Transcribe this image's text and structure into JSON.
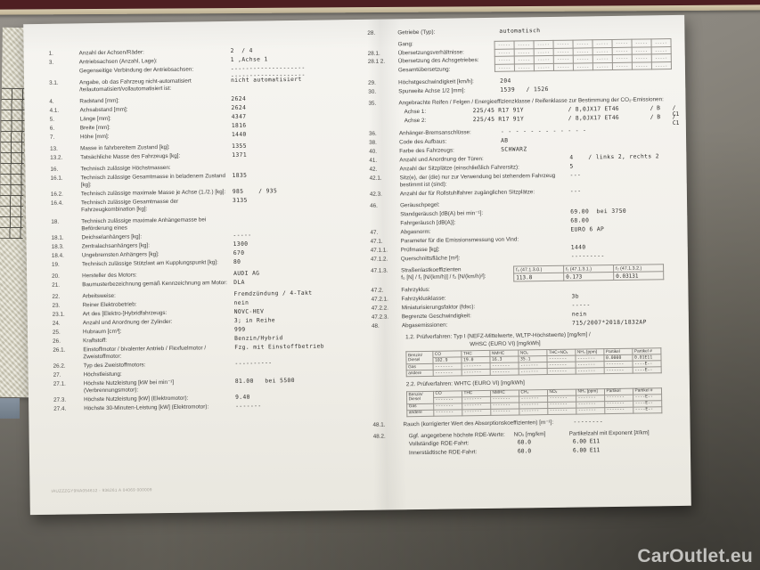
{
  "watermark": "CarOutlet.eu",
  "footer_code": "IAUZZZGY9NA054612 - 936261 A 04069      000009",
  "left_groups": [
    [
      {
        "n": "1.",
        "l": "Anzahl der Achsen/Räder:",
        "v": "2  / 4"
      },
      {
        "n": "3.",
        "l": "Antriebsachsen (Anzahl, Lage):",
        "v": "1 ,Achse 1"
      },
      {
        "n": "",
        "l": "Gegenseitige Verbindung der Antriebsachsen:",
        "v": "--------------------\n--------------------"
      }
    ],
    [
      {
        "n": "3.1.",
        "l": "Angabe, ob das Fahrzeug nicht-automatisiert /teilautomatisiert/vollautomatisiert ist:",
        "v": "nicht automatisiert"
      }
    ],
    [
      {
        "n": "4.",
        "l": "Radstand [mm]:",
        "v": "2624"
      },
      {
        "n": "4.1.",
        "l": "Achsabstand [mm]:",
        "v": "2624"
      },
      {
        "n": "5.",
        "l": "Länge [mm]:",
        "v": "4347"
      },
      {
        "n": "6.",
        "l": "Breite [mm]:",
        "v": "1816"
      },
      {
        "n": "7.",
        "l": "Höhe [mm]:",
        "v": "1440"
      }
    ],
    [
      {
        "n": "13.",
        "l": "Masse in fahrbereitem Zustand [kg]:",
        "v": "1355"
      },
      {
        "n": "13.2.",
        "l": "Tatsächliche Masse des Fahrzeugs [kg]:",
        "v": "1371"
      }
    ],
    [
      {
        "n": "16.",
        "l": "Technisch zulässige Höchstmassen:",
        "v": ""
      },
      {
        "n": "16.1.",
        "l": "Technisch zulässige Gesamtmasse in beladenem Zustand [kg]:",
        "v": "1835"
      },
      {
        "n": "16.2.",
        "l": "Technisch zulässige maximale Masse je Achse (1./2.) [kg]:",
        "v": "985    / 935"
      },
      {
        "n": "16.4.",
        "l": "Technisch zulässige Gesamtmasse der Fahrzeugkombination [kg]:",
        "v": "3135"
      }
    ],
    [
      {
        "n": "18.",
        "l": "Technisch zulässige maximale Anhängemasse bei Beförderung eines",
        "v": ""
      },
      {
        "n": "18.1.",
        "l": "Deichselanhängers [kg]:",
        "v": "-----"
      },
      {
        "n": "18.3.",
        "l": "Zentralachsanhängers [kg]:",
        "v": "1300"
      },
      {
        "n": "18.4.",
        "l": "Ungebremsten Anhängers [kg]:",
        "v": "670"
      },
      {
        "n": "19.",
        "l": "Technisch zulässige Stützlast am Kupplungspunkt [kg]:",
        "v": "80"
      }
    ],
    [
      {
        "n": "20.",
        "l": "Hersteller des Motors:",
        "v": "AUDI AG"
      },
      {
        "n": "21.",
        "l": "Baumusterbezeichnung gemäß Kennzeichnung am Motor:",
        "v": "DLA"
      }
    ],
    [
      {
        "n": "22.",
        "l": "Arbeitsweise:",
        "v": "Fremdzündung / 4-Takt"
      },
      {
        "n": "23.",
        "l": "Reiner Elektrobetrieb:",
        "v": "nein"
      },
      {
        "n": "23.1.",
        "l": "Art des [Elektro-]Hybridfahrzeugs:",
        "v": "NOVC-HEV"
      },
      {
        "n": "24.",
        "l": "Anzahl und Anordnung der Zylinder:",
        "v": "3; in Reihe"
      },
      {
        "n": "25.",
        "l": "Hubraum [cm³]:",
        "v": "999"
      },
      {
        "n": "26.",
        "l": "Kraftstoff:",
        "v": "Benzin/Hybrid"
      },
      {
        "n": "26.1.",
        "l": "Einstoffmotor / bivalenter Antrieb / Flexfuelmotor / Zweistoffmotor:",
        "v": "Fzg. mit Einstoffbetrieb"
      },
      {
        "n": "26.2.",
        "l": "Typ des Zweistoffmotors:",
        "v": "----------"
      },
      {
        "n": "27.",
        "l": "Höchstleistung:",
        "v": ""
      },
      {
        "n": "27.1.",
        "l": "Höchste Nutzleistung [kW bei min⁻¹] (Verbrennungsmotor):",
        "v": "81.00   bei 5500"
      },
      {
        "n": "27.3.",
        "l": "Höchste Nutzleistung [kW] (Elektromotor):",
        "v": "9.40"
      },
      {
        "n": "27.4.",
        "l": "Höchste 30-Minuten-Leistung [kW] (Elektromotor):",
        "v": "-------"
      }
    ]
  ],
  "right_blocks": [
    {
      "type": "rows",
      "rows": [
        {
          "n": "28.",
          "l": "Getriebe (Typ):",
          "v": "automatisch",
          "p": "a"
        }
      ]
    },
    {
      "type": "gear",
      "rows": [
        {
          "n": "",
          "l": "Gang:"
        },
        {
          "n": "28.1.",
          "l": "Übersetzungsverhältnisse:"
        },
        {
          "n": "28.1 2.",
          "l": "Übersetzung des Achsgetriebes:"
        },
        {
          "n": "",
          "l": "Gesamtübersetzung:"
        }
      ],
      "cols": 9,
      "cell": "-----"
    },
    {
      "type": "rows",
      "rows": [
        {
          "n": "29.",
          "l": "Höchstgeschwindigkeit [km/h]:",
          "v": "204",
          "p": "a"
        },
        {
          "n": "30.",
          "l": "Spurweite Achse 1/2 [mm]:",
          "v": "1539   / 1526",
          "p": "a"
        }
      ]
    },
    {
      "type": "tires",
      "n": "35.",
      "l": "Angebrachte Reifen / Felgen / Energieeffizienzklasse / Reifenklasse zur Bestimmung der CO₂-Emissionen:",
      "axles": [
        {
          "l": "Achse 1:",
          "tire": "225/45 R17 91Y",
          "rim": "/ 8,0JX17 ET46",
          "eff": "/ B",
          "cls": "/ C1"
        },
        {
          "l": "Achse 2:",
          "tire": "225/45 R17 91Y",
          "rim": "/ 8,0JX17 ET46",
          "eff": "/ B",
          "cls": "/ C1"
        }
      ]
    },
    {
      "type": "rows",
      "rows": [
        {
          "n": "36.",
          "l": "Anhänger-Bremsanschlüsse:",
          "v": "- - - - - - - - - - - -",
          "p": "a"
        },
        {
          "n": "38.",
          "l": "Code des Aufbaus:",
          "v": "AB",
          "p": "a"
        },
        {
          "n": "40.",
          "l": "Farbe des Fahrzeugs:",
          "v": "SCHWARZ",
          "p": "a"
        },
        {
          "n": "41.",
          "l": "Anzahl und Anordnung der Türen:",
          "v": "4    / links 2, rechts 2",
          "p": "b"
        },
        {
          "n": "42.",
          "l": "Anzahl der Sitzplätze (einschließlich Fahrersitz):",
          "v": "5",
          "p": "b"
        },
        {
          "n": "42.1.",
          "l": "Sitz(e), der (die) nur zur Verwendung bei stehendem Fahrzeug bestimmt ist (sind):",
          "v": "---",
          "p": "b"
        },
        {
          "n": "42.3.",
          "l": "Anzahl der für Rollstuhlfahrer zugänglichen Sitzplätze:",
          "v": "---",
          "p": "b"
        }
      ]
    },
    {
      "type": "rows",
      "rows": [
        {
          "n": "46.",
          "l": "Geräuschpegel:",
          "v": ""
        },
        {
          "n": "",
          "l": "Standgeräusch [dB(A) bei min⁻¹]:",
          "v": "69.00  bei 3750",
          "p": "b"
        },
        {
          "n": "",
          "l": "Fahrgeräusch [dB(A)]:",
          "v": "68.00",
          "p": "b"
        },
        {
          "n": "47.",
          "l": "Abgasnorm:",
          "v": "EURO 6 AP",
          "p": "b"
        },
        {
          "n": "47.1.",
          "l": "Parameter für die Emissionsmessung von Vind:",
          "v": ""
        },
        {
          "n": "47.1.1.",
          "l": "Prüfmasse [kg]:",
          "v": "1440",
          "p": "b"
        },
        {
          "n": "47.1.2.",
          "l": "Querschnittsfläche [m²]:",
          "v": "---------",
          "p": "b"
        }
      ]
    },
    {
      "type": "road",
      "n": "47.1.3.",
      "l": "Straßenlastkoeffizienten\nf₀ [N] / f₁ [N/(km/h)] / f₂ [N/(km/h)²]:",
      "headers": [
        "f₀ (47.1.3.0.)",
        "f₁ (47.1.3.1.)",
        "f₂ (47.1.3.2.)"
      ],
      "values": [
        "113.8",
        "0.173",
        "0.03131"
      ]
    },
    {
      "type": "rows",
      "rows": [
        {
          "n": "47.2.",
          "l": "Fahrzyklus:",
          "v": ""
        },
        {
          "n": "47.2.1.",
          "l": "Fahrzyklusklasse:",
          "v": "3b",
          "p": "b"
        },
        {
          "n": "47.2.2.",
          "l": "Miniaturisierungsfaktor (fdsc):",
          "v": "-----",
          "p": "b"
        },
        {
          "n": "47.2.3.",
          "l": "Begrenzte Geschwindigkeit:",
          "v": "nein",
          "p": "b"
        },
        {
          "n": "48.",
          "l": "Abgasemissionen:",
          "v": "715/2007*2018/1832AP",
          "p": "b"
        }
      ]
    },
    {
      "type": "caption",
      "lines": [
        "1.2. Prüfverfahren: Typ I (NEFZ-Mittelwerte, WLTP-Höchstwerte) [mg/km] /",
        "WHSC (EURO VI) [mg/kWh]"
      ]
    },
    {
      "type": "emis",
      "name": "emissions-table-type1",
      "firstLabel": "Benzin/\nDiesel",
      "columns": [
        "CO",
        "THC",
        "NMHC",
        "NOₓ",
        "THC+NOₓ",
        "NH₃ [ppm]",
        "Partikel",
        "Partikel #"
      ],
      "rows": [
        {
          "l": "",
          "cells": [
            "102.9",
            "19.0",
            "16.3",
            "35.1",
            "-------",
            "-------",
            "0.0000",
            "0.01E11"
          ]
        },
        {
          "l": "Gas",
          "cells": [
            "-------",
            "-------",
            "-------",
            "-------",
            "-------",
            "-------",
            "-------",
            "----E--"
          ]
        },
        {
          "l": "andere",
          "cells": [
            "-------",
            "-------",
            "-------",
            "-------",
            "-------",
            "-------",
            "-------",
            "----E--"
          ]
        }
      ]
    },
    {
      "type": "caption",
      "lines": [
        "2.2. Prüfverfahren: WHTC (EURO VI) [mg/kWh]"
      ]
    },
    {
      "type": "emis",
      "name": "emissions-table-whtc",
      "firstLabel": "Benzin/\nDiesel",
      "columns": [
        "CO",
        "THC",
        "NMHC",
        "CH₄",
        "NOₓ",
        "NH₃ [ppm]",
        "Partikel",
        "Partikel #"
      ],
      "rows": [
        {
          "l": "",
          "cells": [
            "-------",
            "-------",
            "-------",
            "-------",
            "-------",
            "-------",
            "-------",
            "----E--"
          ]
        },
        {
          "l": "Gas",
          "cells": [
            "-------",
            "-------",
            "-------",
            "-------",
            "-------",
            "-------",
            "-------",
            "----E--"
          ]
        },
        {
          "l": "andere",
          "cells": [
            "-------",
            "-------",
            "-------",
            "-------",
            "-------",
            "-------",
            "-------",
            "----E--"
          ]
        }
      ]
    },
    {
      "type": "rows",
      "rows": [
        {
          "n": "48.1.",
          "l": "Rauch (korrigierter Wert des Absorptionskoeffizienten) [m⁻¹]:",
          "v": "--------",
          "p": "b"
        }
      ]
    },
    {
      "type": "rde",
      "n": "48.2.",
      "l": "Ggf. angegebene höchste RDE-Werte:",
      "h1": "NOₓ [mg/km]",
      "h2": "Partikelzahl mit Exponent [#/km]",
      "rows": [
        {
          "l": "Vollständige RDE-Fahrt:",
          "v1": "60.0",
          "v2": "6.00 E11"
        },
        {
          "l": "Innerstädtische RDE-Fahrt:",
          "v1": "60.0",
          "v2": "6.00 E11"
        }
      ]
    }
  ]
}
